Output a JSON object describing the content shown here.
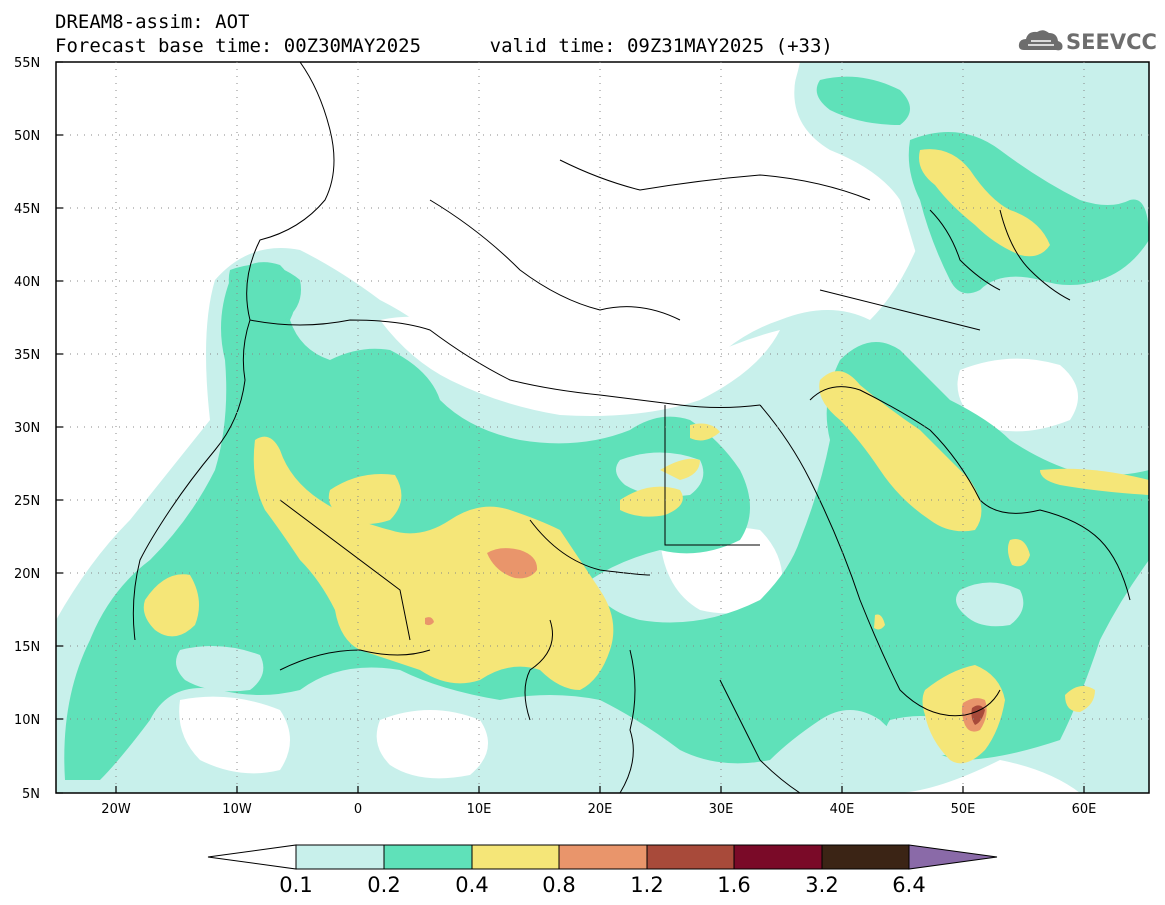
{
  "header": {
    "line1": "DREAM8-assim: AOT",
    "line2": "Forecast base time: 00Z30MAY2025      valid time: 09Z31MAY2025 (+33)"
  },
  "logo": {
    "icon": "cloud-icon",
    "text": "SEEVCCC"
  },
  "map": {
    "lat_ticks": [
      "55N",
      "50N",
      "45N",
      "40N",
      "35N",
      "30N",
      "25N",
      "20N",
      "15N",
      "10N",
      "5N"
    ],
    "lon_ticks": [
      "20W",
      "10W",
      "0",
      "10E",
      "20E",
      "30E",
      "40E",
      "50E",
      "60E"
    ],
    "extent": {
      "lon_min": -25,
      "lon_max": 65,
      "lat_min": 5,
      "lat_max": 55
    }
  },
  "colorbar": {
    "labels": [
      "0.1",
      "0.2",
      "0.4",
      "0.8",
      "1.2",
      "1.6",
      "3.2",
      "6.4"
    ],
    "colors": [
      "#ffffff",
      "#c8f0eb",
      "#5fe1b9",
      "#f5e678",
      "#e9956b",
      "#a84a3a",
      "#7a0a28",
      "#3b2415",
      "#8a6aa8"
    ]
  }
}
